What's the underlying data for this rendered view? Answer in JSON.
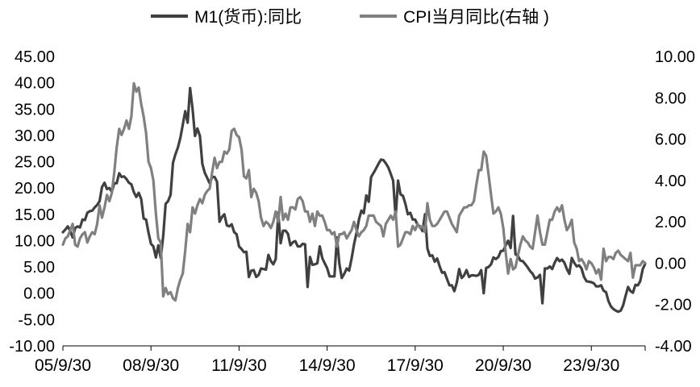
{
  "chart_data": {
    "type": "line",
    "title": "",
    "grid": false,
    "legend_position": "top",
    "x_axis": {
      "start_month": "2005-09",
      "n_months": 239,
      "tick_labels": [
        "05/9/30",
        "08/9/30",
        "11/9/30",
        "14/9/30",
        "17/9/30",
        "20/9/30",
        "23/9/30"
      ],
      "tick_month_index": [
        0,
        36,
        72,
        108,
        144,
        180,
        216
      ]
    },
    "left_axis": {
      "min": -10,
      "max": 45,
      "tick_values": [
        45,
        40,
        35,
        30,
        25,
        20,
        15,
        10,
        5,
        0,
        -5,
        -10
      ],
      "tick_labels": [
        "45.00",
        "40.00",
        "35.00",
        "30.00",
        "25.00",
        "20.00",
        "15.00",
        "10.00",
        "5.00",
        "0.00",
        "-5.00",
        "-10.00"
      ]
    },
    "right_axis": {
      "min": -4,
      "max": 10,
      "tick_values": [
        10,
        8,
        6,
        4,
        2,
        0,
        -2,
        -4
      ],
      "tick_labels": [
        "10.00",
        "8.00",
        "6.00",
        "4.00",
        "2.00",
        "0.00",
        "-2.00",
        "-4.00"
      ]
    },
    "series": [
      {
        "name": "M1(货币):同比",
        "axis": "left",
        "color": "#404040",
        "values": [
          11.6,
          12.1,
          12.7,
          11.8,
          10.6,
          12.4,
          12.7,
          12.5,
          14.0,
          13.9,
          15.3,
          15.6,
          15.7,
          16.3,
          16.8,
          17.5,
          20.2,
          21.0,
          19.8,
          20.0,
          19.3,
          20.9,
          20.9,
          22.8,
          22.1,
          22.2,
          21.7,
          21.0,
          20.7,
          19.2,
          18.3,
          19.1,
          17.9,
          14.2,
          14.0,
          11.5,
          9.4,
          8.9,
          6.8,
          9.1,
          6.7,
          10.9,
          17.0,
          17.5,
          18.7,
          24.8,
          26.4,
          27.7,
          29.5,
          32.0,
          34.6,
          32.4,
          39.0,
          35.0,
          29.9,
          31.3,
          29.9,
          24.6,
          22.9,
          21.9,
          20.9,
          22.1,
          22.1,
          21.2,
          13.6,
          14.5,
          15.0,
          12.9,
          12.7,
          13.1,
          11.6,
          11.2,
          8.9,
          8.4,
          7.8,
          7.9,
          3.1,
          4.3,
          4.4,
          3.1,
          3.5,
          4.7,
          4.6,
          4.5,
          7.3,
          6.1,
          5.5,
          6.5,
          15.3,
          9.5,
          11.9,
          11.9,
          11.3,
          9.1,
          9.7,
          9.9,
          8.9,
          8.9,
          9.4,
          9.3,
          1.2,
          6.9,
          5.4,
          5.5,
          5.7,
          8.9,
          6.7,
          5.7,
          4.8,
          3.2,
          3.2,
          3.2,
          10.6,
          5.6,
          2.9,
          3.7,
          4.7,
          4.3,
          6.6,
          9.3,
          11.4,
          14.0,
          15.7,
          15.2,
          18.6,
          17.4,
          22.1,
          22.9,
          23.7,
          24.6,
          25.4,
          25.3,
          24.7,
          23.9,
          22.7,
          21.4,
          14.5,
          21.4,
          18.8,
          18.5,
          17.0,
          15.0,
          15.3,
          14.0,
          14.0,
          13.0,
          12.7,
          11.8,
          15.0,
          8.5,
          7.1,
          7.2,
          6.0,
          6.6,
          5.1,
          3.9,
          4.0,
          2.7,
          1.5,
          1.5,
          0.4,
          2.0,
          4.6,
          2.9,
          3.4,
          4.4,
          3.1,
          3.4,
          3.4,
          3.3,
          3.5,
          4.4,
          0.0,
          4.8,
          5.0,
          5.5,
          6.8,
          6.5,
          6.9,
          8.0,
          8.1,
          9.1,
          10.0,
          8.6,
          14.7,
          7.4,
          7.1,
          6.2,
          6.1,
          5.5,
          4.9,
          4.2,
          3.7,
          2.8,
          3.0,
          3.5,
          -1.9,
          4.7,
          4.7,
          5.1,
          4.6,
          5.8,
          6.7,
          6.1,
          6.4,
          5.8,
          4.6,
          3.7,
          6.7,
          5.8,
          5.1,
          5.3,
          4.7,
          3.1,
          2.3,
          2.2,
          2.1,
          1.9,
          1.3,
          1.3,
          1.5,
          0.5,
          0.2,
          -1.5,
          -2.5,
          -3.0,
          -3.3,
          -3.5,
          -3.3,
          -2.3,
          -0.5,
          1.2,
          0.4,
          0.1,
          1.6,
          1.5,
          2.3,
          4.6,
          5.6
        ]
      },
      {
        "name": "CPI当月同比(右轴 )",
        "axis": "right",
        "color": "#808080",
        "values": [
          0.9,
          1.2,
          1.3,
          1.6,
          1.9,
          0.9,
          0.8,
          1.2,
          1.4,
          1.5,
          1.0,
          1.3,
          1.5,
          1.4,
          1.9,
          2.8,
          2.2,
          2.7,
          3.3,
          3.0,
          3.4,
          4.4,
          5.6,
          6.5,
          6.2,
          6.5,
          6.9,
          6.5,
          7.1,
          8.7,
          8.3,
          8.5,
          7.7,
          7.1,
          6.3,
          4.9,
          4.6,
          4.0,
          2.4,
          1.2,
          1.0,
          -1.6,
          -1.2,
          -1.5,
          -1.4,
          -1.7,
          -1.8,
          -1.2,
          -0.8,
          -0.5,
          0.6,
          1.9,
          1.5,
          2.7,
          2.4,
          2.8,
          3.1,
          2.9,
          3.3,
          3.5,
          3.6,
          4.4,
          5.1,
          4.6,
          4.9,
          4.9,
          5.4,
          5.3,
          5.5,
          6.4,
          6.5,
          6.2,
          6.1,
          5.5,
          4.2,
          4.1,
          4.5,
          3.2,
          3.6,
          3.4,
          3.0,
          2.2,
          1.8,
          2.0,
          1.9,
          1.7,
          2.0,
          2.5,
          2.0,
          3.2,
          2.1,
          2.4,
          2.1,
          2.7,
          2.7,
          2.6,
          3.1,
          3.2,
          3.0,
          2.5,
          2.5,
          2.0,
          2.4,
          1.8,
          2.5,
          2.3,
          2.3,
          2.0,
          1.6,
          1.6,
          1.4,
          1.5,
          0.8,
          1.4,
          1.4,
          1.5,
          1.2,
          1.4,
          1.6,
          2.0,
          1.6,
          1.3,
          1.5,
          1.6,
          1.8,
          2.3,
          2.3,
          2.3,
          2.0,
          1.9,
          1.8,
          1.3,
          1.9,
          2.1,
          2.3,
          2.1,
          2.5,
          0.8,
          0.9,
          1.2,
          1.5,
          1.5,
          1.4,
          1.8,
          1.6,
          1.9,
          1.7,
          1.8,
          1.5,
          2.9,
          2.1,
          1.8,
          1.8,
          1.9,
          2.1,
          2.3,
          2.5,
          2.5,
          2.2,
          1.9,
          1.7,
          1.5,
          2.3,
          2.5,
          2.7,
          2.7,
          2.8,
          2.8,
          3.0,
          3.8,
          4.5,
          4.5,
          5.4,
          5.2,
          4.3,
          3.3,
          2.4,
          2.5,
          2.7,
          2.4,
          1.7,
          0.5,
          -0.5,
          0.2,
          -0.3,
          -0.2,
          0.4,
          0.9,
          1.3,
          1.1,
          1.0,
          0.8,
          0.7,
          1.5,
          2.3,
          1.5,
          0.9,
          0.9,
          1.5,
          2.1,
          2.1,
          2.5,
          2.7,
          2.5,
          2.8,
          2.1,
          1.6,
          1.8,
          2.1,
          1.0,
          0.7,
          0.1,
          0.2,
          0.0,
          -0.3,
          0.1,
          0.0,
          -0.2,
          -0.5,
          -0.3,
          -0.8,
          0.7,
          0.1,
          0.3,
          0.3,
          0.2,
          0.5,
          0.6,
          0.4,
          0.3,
          0.2,
          0.1,
          0.5,
          -0.7,
          -0.1,
          -0.1,
          -0.1,
          0.1,
          0.0
        ]
      }
    ]
  }
}
